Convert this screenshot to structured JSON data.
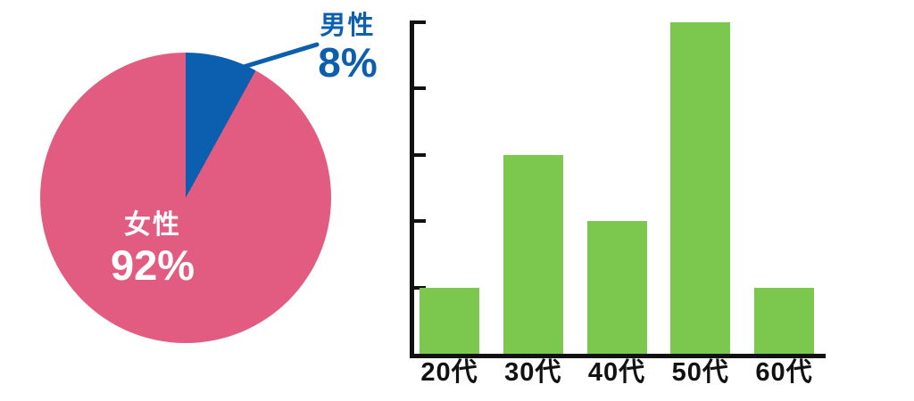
{
  "page": {
    "background": "#FFFFFF"
  },
  "colors": {
    "pie_female_pink": "#E25C81",
    "pie_male_blue": "#0B5FAE",
    "bar_green": "#7CC84E",
    "axis_ink": "#111111",
    "inside_label_white": "#FFFFFF"
  },
  "chart_data": [
    {
      "type": "pie",
      "title": "",
      "labels": [
        "女性",
        "男性"
      ],
      "values": [
        92,
        8
      ],
      "display_values": [
        "92%",
        "8%"
      ],
      "unit": "%",
      "colors": [
        "#E25C81",
        "#0B5FAE"
      ],
      "label_text_colors": [
        "#FFFFFF",
        "#0B5FAE"
      ],
      "start_angle_deg": 0,
      "direction": "clockwise",
      "layout_hint": "male (blue) slice starts at 12 o'clock going clockwise; female label inside slice, male label outside upper-right connected by blue leader line"
    },
    {
      "type": "bar",
      "title": "",
      "xlabel": "",
      "ylabel": "",
      "categories": [
        "20代",
        "30代",
        "40代",
        "50代",
        "60代"
      ],
      "values": [
        1,
        3,
        2,
        5,
        1
      ],
      "value_note": "y-axis ticks are unlabeled; values expressed in tick units (5 equal divisions)",
      "ylim": [
        0,
        5
      ],
      "yticks": [
        1,
        2,
        3,
        4,
        5
      ],
      "ytick_labels": [],
      "grid": false,
      "legend": false,
      "bar_color": "#7CC84E",
      "axis_color": "#111111"
    }
  ]
}
